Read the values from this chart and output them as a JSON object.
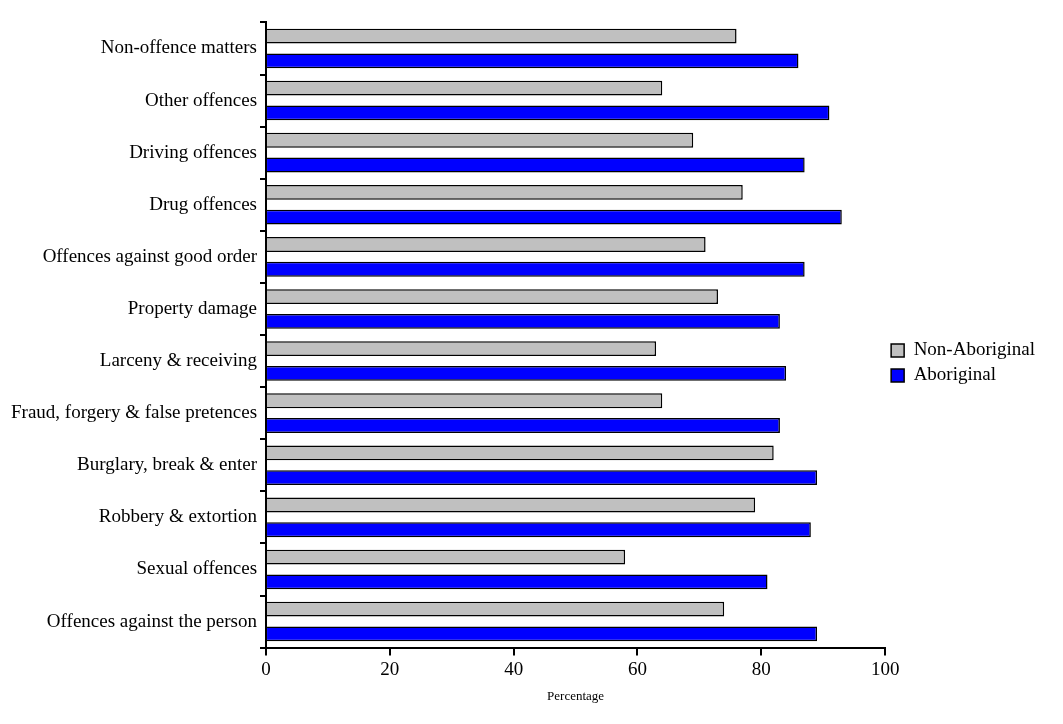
{
  "chart_data": {
    "type": "bar",
    "orientation": "horizontal",
    "xlabel": "Percentage",
    "categories": [
      "Non-offence matters",
      "Other offences",
      "Driving offences",
      "Drug offences",
      "Offences against good order",
      "Property damage",
      "Larceny & receiving",
      "Fraud, forgery & false pretences",
      "Burglary, break & enter",
      "Robbery & extortion",
      "Sexual offences",
      "Offences against the person"
    ],
    "series": [
      {
        "name": "Non-Aboriginal",
        "color": "#c0c0c0",
        "values": [
          76,
          64,
          69,
          77,
          71,
          73,
          63,
          64,
          82,
          79,
          58,
          74
        ]
      },
      {
        "name": "Aboriginal",
        "color": "#0000ff",
        "values": [
          86,
          91,
          87,
          93,
          87,
          83,
          84,
          83,
          89,
          88,
          81,
          89
        ]
      }
    ],
    "xlim": [
      0,
      100
    ],
    "xticks": [
      0,
      20,
      40,
      60,
      80,
      100
    ],
    "grid": false,
    "legend": "right"
  }
}
